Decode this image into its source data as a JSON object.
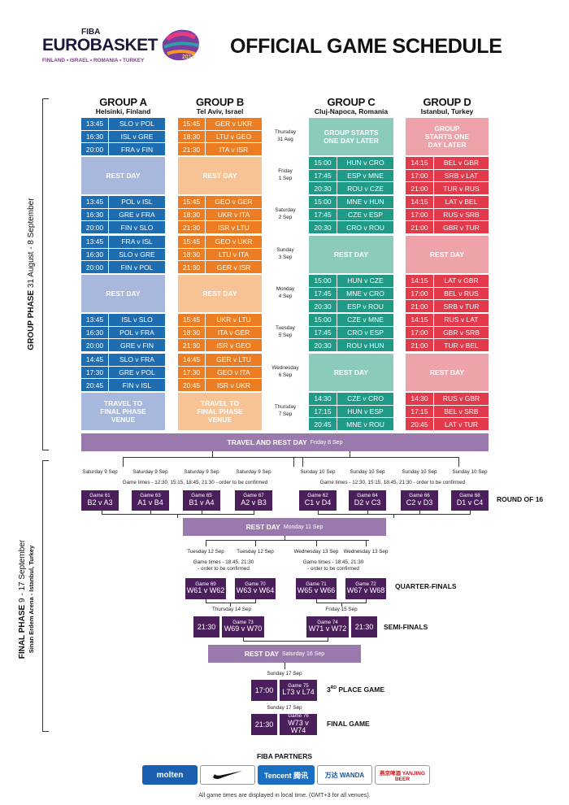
{
  "header": {
    "fiba": "FIBA",
    "eurobasket": "EUROBASKET",
    "hosts": "FINLAND • ISRAEL • ROMANIA • TURKEY",
    "year": "2017",
    "title": "OFFICIAL GAME SCHEDULE"
  },
  "colors": {
    "groupA": "#1e6db1",
    "groupA_light": "#a8b8dd",
    "groupB": "#ec7d22",
    "groupB_light": "#f8c394",
    "groupC": "#1f9a86",
    "groupC_light": "#8ccbbc",
    "groupD": "#e2394b",
    "groupD_light": "#eea2aa",
    "travel": "#9a7aac",
    "final": "#4b1f5c"
  },
  "groups": [
    {
      "name": "GROUP A",
      "city": "Helsinki, Finland"
    },
    {
      "name": "GROUP B",
      "city": "Tel Aviv, Israel"
    },
    {
      "name": "GROUP C",
      "city": "Cluj-Napoca, Romania"
    },
    {
      "name": "GROUP D",
      "city": "Istanbul, Turkey"
    }
  ],
  "phases": {
    "group_bold": "GROUP PHASE",
    "group_dates": "31 August - 8 September",
    "final_bold": "FINAL PHASE",
    "final_dates": "9 - 17 September",
    "final_venue": "Sinan Erdem Arena - Istanbul, Turkey"
  },
  "days": [
    {
      "day": "Thursday",
      "date": "31 Aug"
    },
    {
      "day": "Friday",
      "date": "1 Sep"
    },
    {
      "day": "Saturday",
      "date": "2 Sep"
    },
    {
      "day": "Sunday",
      "date": "3 Sep"
    },
    {
      "day": "Monday",
      "date": "4 Sep"
    },
    {
      "day": "Tuesday",
      "date": "5 Sep"
    },
    {
      "day": "Wednesday",
      "date": "6 Sep"
    },
    {
      "day": "Thursday",
      "date": "7 Sep"
    }
  ],
  "A": [
    [
      [
        "13:45",
        "SLO v POL"
      ],
      [
        "16:30",
        "ISL v GRE"
      ],
      [
        "20:00",
        "FRA v FIN"
      ]
    ],
    "REST DAY",
    [
      [
        "13:45",
        "POL v ISL"
      ],
      [
        "16:30",
        "GRE v FRA"
      ],
      [
        "20:00",
        "FIN v SLO"
      ]
    ],
    [
      [
        "13:45",
        "FRA v ISL"
      ],
      [
        "16:30",
        "SLO v GRE"
      ],
      [
        "20:00",
        "FIN v POL"
      ]
    ],
    "REST DAY",
    [
      [
        "13:45",
        "ISL v SLO"
      ],
      [
        "16:30",
        "POL v FRA"
      ],
      [
        "20:00",
        "GRE v FIN"
      ]
    ],
    [
      [
        "14:45",
        "SLO v FRA"
      ],
      [
        "17:30",
        "GRE v POL"
      ],
      [
        "20:45",
        "FIN v ISL"
      ]
    ],
    "TRAVEL TO FINAL PHASE VENUE"
  ],
  "B": [
    [
      [
        "15:45",
        "GER v UKR"
      ],
      [
        "18:30",
        "LTU v GEO"
      ],
      [
        "21:30",
        "ITA v ISR"
      ]
    ],
    "REST DAY",
    [
      [
        "15:45",
        "GEO v GER"
      ],
      [
        "18:30",
        "UKR v ITA"
      ],
      [
        "21:30",
        "ISR v LTU"
      ]
    ],
    [
      [
        "15:45",
        "GEO v UKR"
      ],
      [
        "18:30",
        "LTU v ITA"
      ],
      [
        "21:30",
        "GER v ISR"
      ]
    ],
    "REST DAY",
    [
      [
        "15:45",
        "UKR v LTU"
      ],
      [
        "18:30",
        "ITA v GER"
      ],
      [
        "21:30",
        "ISR v GEO"
      ]
    ],
    [
      [
        "14:45",
        "GER v LTU"
      ],
      [
        "17:30",
        "GEO v ITA"
      ],
      [
        "20:45",
        "ISR v UKR"
      ]
    ],
    "TRAVEL TO FINAL PHASE VENUE"
  ],
  "C": [
    "GROUP STARTS ONE DAY LATER",
    [
      [
        "15:00",
        "HUN v CRO"
      ],
      [
        "17:45",
        "ESP v MNE"
      ],
      [
        "20:30",
        "ROU v CZE"
      ]
    ],
    [
      [
        "15:00",
        "MNE v HUN"
      ],
      [
        "17:45",
        "CZE v ESP"
      ],
      [
        "20:30",
        "CRO v ROU"
      ]
    ],
    "REST DAY",
    [
      [
        "15:00",
        "HUN v CZE"
      ],
      [
        "17:45",
        "MNE v CRO"
      ],
      [
        "20:30",
        "ESP v ROU"
      ]
    ],
    [
      [
        "15:00",
        "CZE v MNE"
      ],
      [
        "17:45",
        "CRO v ESP"
      ],
      [
        "20:30",
        "ROU v HUN"
      ]
    ],
    "REST DAY",
    [
      [
        "14:30",
        "CZE v CRO"
      ],
      [
        "17:15",
        "HUN v ESP"
      ],
      [
        "20:45",
        "MNE v ROU"
      ]
    ]
  ],
  "D": [
    "GROUP STARTS ONE DAY LATER",
    [
      [
        "14:15",
        "BEL v GBR"
      ],
      [
        "17:00",
        "SRB v LAT"
      ],
      [
        "21:00",
        "TUR v RUS"
      ]
    ],
    [
      [
        "14:15",
        "LAT v BEL"
      ],
      [
        "17:00",
        "RUS v SRB"
      ],
      [
        "21:00",
        "GBR v TUR"
      ]
    ],
    "REST DAY",
    [
      [
        "14:15",
        "LAT v GBR"
      ],
      [
        "17:00",
        "BEL v RUS"
      ],
      [
        "21:00",
        "SRB v TUR"
      ]
    ],
    [
      [
        "14:15",
        "RUS v LAT"
      ],
      [
        "17:00",
        "GBR v SRB"
      ],
      [
        "21:00",
        "TUR v BEL"
      ]
    ],
    "REST DAY",
    [
      [
        "14:30",
        "RUS v GBR"
      ],
      [
        "17:15",
        "BEL v SRB"
      ],
      [
        "20:45",
        "LAT v TUR"
      ]
    ]
  ],
  "travel_rest": {
    "label": "TRAVEL AND REST DAY",
    "date": "Friday 8 Sep"
  },
  "r16": {
    "days": [
      "Saturday 9 Sep",
      "Saturday 9 Sep",
      "Saturday 9 Sep",
      "Saturday 9 Sep",
      "Sunday 10 Sep",
      "Sunday 10 Sep",
      "Sunday 10 Sep",
      "Sunday 10 Sep"
    ],
    "note_left": "Game times - 12:30, 15:15, 18:45, 21:30 - order to be confirmed",
    "note_right": "Game times - 12:30, 15:15, 18:45, 21:30 - order to be confirmed",
    "games": [
      [
        "Game 61",
        "B2 v A3"
      ],
      [
        "Game 63",
        "A1 v B4"
      ],
      [
        "Game 65",
        "B1 v A4"
      ],
      [
        "Game 67",
        "A2 v B3"
      ],
      [
        "Game 62",
        "C1 v D4"
      ],
      [
        "Game 64",
        "D2 v C3"
      ],
      [
        "Game 66",
        "C2 v D3"
      ],
      [
        "Game 68",
        "D1 v C4"
      ]
    ],
    "label": "ROUND OF 16"
  },
  "rest1": {
    "label": "REST DAY",
    "date": "Monday 11 Sep"
  },
  "qf": {
    "days": [
      "Tuesday 12 Sep",
      "Tuesday 12 Sep",
      "Wednesday 13 Sep",
      "Wednesday 13 Sep"
    ],
    "note_left": "Game times - 18:45, 21:30\n- order to be confirmed",
    "note_right": "Game times - 18:45, 21:30\n- order to be confirmed",
    "games": [
      [
        "Game 69",
        "W61 v W62"
      ],
      [
        "Game 70",
        "W63 v W64"
      ],
      [
        "Game 71",
        "W65 v W66"
      ],
      [
        "Game 72",
        "W67 v W68"
      ]
    ],
    "label": "QUARTER-FINALS"
  },
  "sf": {
    "days": [
      "Thursday 14 Sep",
      "Friday 15 Sep"
    ],
    "times": [
      "21:30",
      "21:30"
    ],
    "games": [
      [
        "Game 73",
        "W69 v W70"
      ],
      [
        "Game 74",
        "W71 v W72"
      ]
    ],
    "label": "SEMI-FINALS"
  },
  "rest2": {
    "label": "REST DAY",
    "date": "Saturday 16 Sep"
  },
  "third": {
    "day": "Sunday 17 Sep",
    "time": "17:00",
    "game": "Game 75",
    "match": "L73 v L74",
    "label_pre": "3",
    "label_sup": "RD",
    "label_post": " PLACE GAME"
  },
  "final": {
    "day": "Sunday 17 Sep",
    "time": "21:30",
    "game": "Game 76",
    "match": "W73 v W74",
    "label": "FINAL GAME"
  },
  "partners": {
    "title": "FIBA PARTNERS",
    "names": [
      "molten",
      "Nike",
      "Tencent 腾讯",
      "万达 WANDA",
      "燕京啤酒 YANJING BEER"
    ]
  },
  "footer": "All game times are displayed in local time. (GMT+3 for all venues)."
}
